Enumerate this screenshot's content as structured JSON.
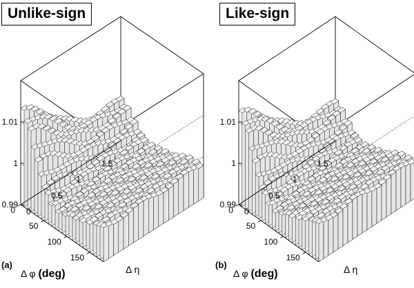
{
  "chart_data": [
    {
      "type": "lego3d",
      "panel_label": "(a)",
      "title": "Unlike-sign",
      "z_ticks": [
        "0.99",
        "1",
        "1.01"
      ],
      "zlim": [
        0.99,
        1.02
      ],
      "x_label_symbol": "Δ φ",
      "x_label_unit": "(deg)",
      "x_ticks": [
        "0",
        "50",
        "100",
        "150"
      ],
      "xlim": [
        0,
        180
      ],
      "y_label": "Δ η",
      "y_ticks": [
        "0",
        "0.5",
        "1",
        "1.5"
      ],
      "ylim": [
        0,
        2
      ],
      "peak_value": 1.0175,
      "near_side_ridge": 1.005,
      "away_side_level": 0.998
    },
    {
      "type": "lego3d",
      "panel_label": "(b)",
      "title": "Like-sign",
      "z_ticks": [
        "0.99",
        "1",
        "1.01"
      ],
      "zlim": [
        0.99,
        1.02
      ],
      "x_label_symbol": "Δ φ",
      "x_label_unit": "(deg)",
      "x_ticks": [
        "0",
        "50",
        "100",
        "150"
      ],
      "xlim": [
        0,
        180
      ],
      "y_label": "Δ η",
      "y_ticks": [
        "0",
        "0.5",
        "1",
        "1.5"
      ],
      "ylim": [
        0,
        2
      ],
      "peak_value": 1.0165,
      "near_side_ridge": 1.004,
      "away_side_level": 0.999
    }
  ]
}
